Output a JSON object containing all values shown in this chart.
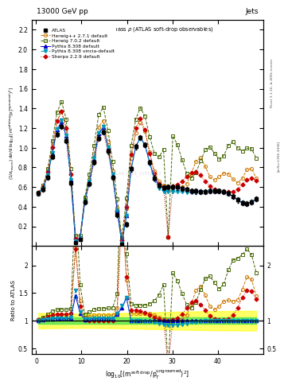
{
  "title_top_left": "13000 GeV pp",
  "title_top_right": "Jets",
  "main_title": "Relative jet mass ρ (ATLAS soft-drop observables)",
  "xlabel": "log$_{10}$[(m$^{\\rm soft\\ drop}$/p$_T^{\\rm ungroomed})^2$]",
  "ylabel_main": "$(1/\\sigma_{\\rm resum})$ d$\\sigma$/d log$_{10}$[(m$^{\\rm soft drop}$/p$_T^{\\rm ungroomed})^2$]",
  "ylabel_ratio": "Ratio to ATLAS",
  "xlim": [
    -1,
    50
  ],
  "ylim_main": [
    0.0,
    2.3
  ],
  "ylim_ratio": [
    0.4,
    2.35
  ],
  "watermark": "ATLAS 2019_11772813",
  "right_label1": "Rivet 3.1.10, ≥ 400k events",
  "right_label2": "[arXiv:1306.3436]",
  "color_atlas": "#000000",
  "color_herwig271": "#cc7700",
  "color_herwig702": "#446600",
  "color_pythia8": "#0000cc",
  "color_pythia8v": "#0099bb",
  "color_sherpa": "#cc0000",
  "yticks_main": [
    0.2,
    0.4,
    0.6,
    0.8,
    1.0,
    1.2,
    1.4,
    1.6,
    1.8,
    2.0,
    2.2
  ],
  "yticks_ratio": [
    0.5,
    1.0,
    1.5,
    2.0
  ],
  "xticks": [
    0,
    10,
    20,
    30,
    40
  ]
}
